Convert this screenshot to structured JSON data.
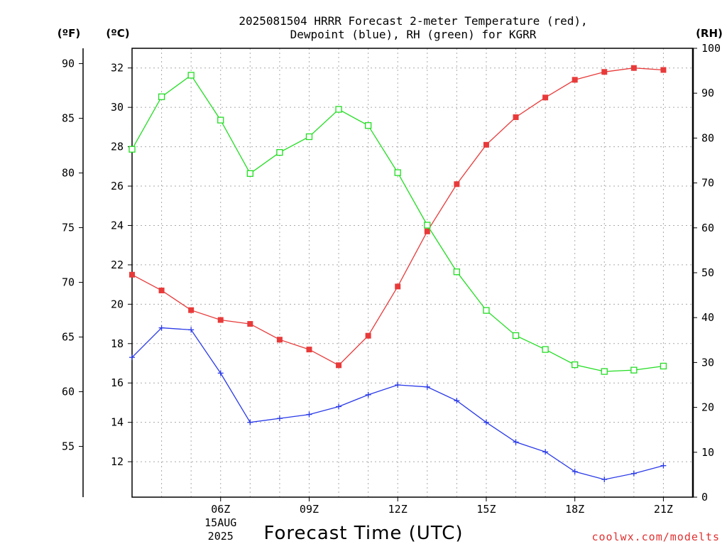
{
  "chart_data": {
    "type": "line",
    "title_line1": "2025081504 HRRR Forecast 2-meter Temperature (red),",
    "title_line2": "Dewpoint (blue), RH (green) for KGRR",
    "xlabel": "Forecast Time (UTC)",
    "credit": "coolwx.com/modelts",
    "axis_headers": {
      "fahrenheit": "(ºF)",
      "celsius": "(ºC)",
      "rh": "(RH)"
    },
    "x": [
      3,
      4,
      5,
      6,
      7,
      8,
      9,
      10,
      11,
      12,
      13,
      14,
      15,
      16,
      17,
      18,
      19,
      20,
      21,
      22
    ],
    "xlim": [
      3,
      22
    ],
    "x_ticks": [
      {
        "x": 6,
        "label": "06Z",
        "sub1": "15AUG",
        "sub2": "2025"
      },
      {
        "x": 9,
        "label": "09Z",
        "sub1": "",
        "sub2": ""
      },
      {
        "x": 12,
        "label": "12Z",
        "sub1": "",
        "sub2": ""
      },
      {
        "x": 15,
        "label": "15Z",
        "sub1": "",
        "sub2": ""
      },
      {
        "x": 18,
        "label": "18Z",
        "sub1": "",
        "sub2": ""
      },
      {
        "x": 21,
        "label": "21Z",
        "sub1": "",
        "sub2": ""
      }
    ],
    "celsius_axis": {
      "ylim": [
        10.2,
        33.0
      ],
      "ticks": [
        "12",
        "14",
        "16",
        "18",
        "20",
        "22",
        "24",
        "26",
        "28",
        "30",
        "32"
      ]
    },
    "fahrenheit_axis": {
      "ticks": [
        "55",
        "60",
        "65",
        "70",
        "75",
        "80",
        "85",
        "90"
      ]
    },
    "rh_axis": {
      "ylim": [
        0,
        100
      ],
      "ticks": [
        "0",
        "10",
        "20",
        "30",
        "40",
        "50",
        "60",
        "70",
        "80",
        "90",
        "100"
      ]
    },
    "series": [
      {
        "name": "Temperature",
        "color": "#e83a3a",
        "marker": "filled-square",
        "axis": "celsius",
        "values": [
          21.5,
          20.7,
          19.7,
          19.2,
          19.0,
          18.2,
          17.7,
          16.9,
          18.4,
          20.9,
          23.7,
          26.1,
          28.1,
          29.5,
          30.5,
          31.4,
          31.8,
          32.0,
          31.9,
          null
        ]
      },
      {
        "name": "Dewpoint",
        "color": "#2a3ae8",
        "marker": "plus",
        "axis": "celsius",
        "values": [
          17.3,
          18.8,
          18.7,
          16.5,
          14.0,
          14.2,
          14.4,
          14.8,
          15.4,
          15.9,
          15.8,
          15.1,
          14.0,
          13.0,
          12.5,
          11.5,
          11.1,
          11.4,
          11.8,
          null
        ]
      },
      {
        "name": "RH",
        "color": "#22dd22",
        "marker": "open-square",
        "axis": "rh",
        "values": [
          77.5,
          89.2,
          94.0,
          84.0,
          72.1,
          76.8,
          80.3,
          86.4,
          82.8,
          72.3,
          60.6,
          50.2,
          41.6,
          36.0,
          32.9,
          29.5,
          28.0,
          28.3,
          29.2,
          null
        ]
      }
    ]
  }
}
